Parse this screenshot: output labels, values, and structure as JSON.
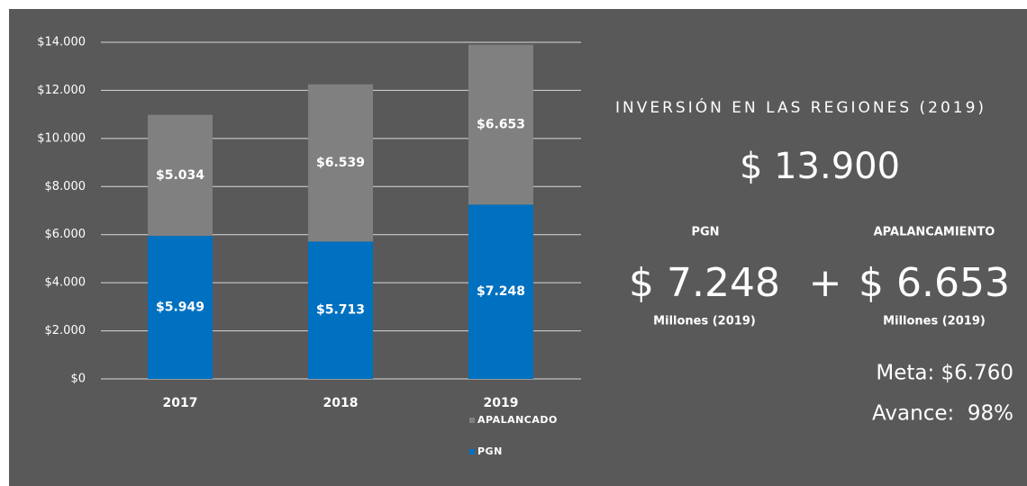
{
  "chart_data": {
    "type": "stacked-bar",
    "categories": [
      "2017",
      "2018",
      "2019"
    ],
    "series": [
      {
        "name": "PGN",
        "color": "#0070c0",
        "values": [
          5949,
          5713,
          7248
        ],
        "value_labels": [
          "$5.949",
          "$5.713",
          "$7.248"
        ]
      },
      {
        "name": "APALANCADO",
        "color": "#808080",
        "values": [
          5034,
          6539,
          6653
        ],
        "value_labels": [
          "$5.034",
          "$6.539",
          "$6.653"
        ]
      }
    ],
    "ylim": [
      0,
      14000
    ],
    "yticks": [
      {
        "value": 0,
        "label": "$0"
      },
      {
        "value": 2000,
        "label": "$2.000"
      },
      {
        "value": 4000,
        "label": "$4.000"
      },
      {
        "value": 6000,
        "label": "$6.000"
      },
      {
        "value": 8000,
        "label": "$8.000"
      },
      {
        "value": 10000,
        "label": "$10.000"
      },
      {
        "value": 12000,
        "label": "$12.000"
      },
      {
        "value": 14000,
        "label": "$14.000"
      }
    ],
    "grid": true,
    "legend": "bottom-right"
  },
  "panel": {
    "title": "INVERSIÓN EN LAS REGIONES (2019)",
    "total": "$ 13.900",
    "left": {
      "heading": "PGN",
      "amount": "$ 7.248",
      "unit": "Millones (2019)"
    },
    "operator": "+",
    "right": {
      "heading": "APALANCAMIENTO",
      "amount": "$ 6.653",
      "unit": "Millones (2019)"
    },
    "meta": "Meta: $6.760",
    "avance": "Avance:  98%"
  }
}
